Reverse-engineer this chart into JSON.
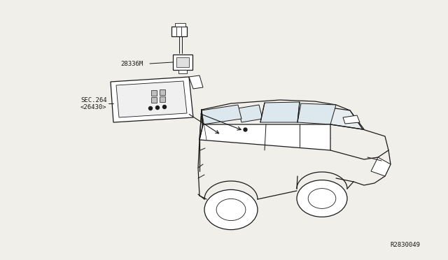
{
  "bg_color": "#f0efea",
  "line_color": "#1a1a1a",
  "text_color": "#1a1a1a",
  "part_label_1": "28336M",
  "part_label_2": "SEC.264",
  "part_label_2b": "<26430>",
  "ref_number": "R2830049",
  "fig_width": 6.4,
  "fig_height": 3.72,
  "dpi": 100
}
